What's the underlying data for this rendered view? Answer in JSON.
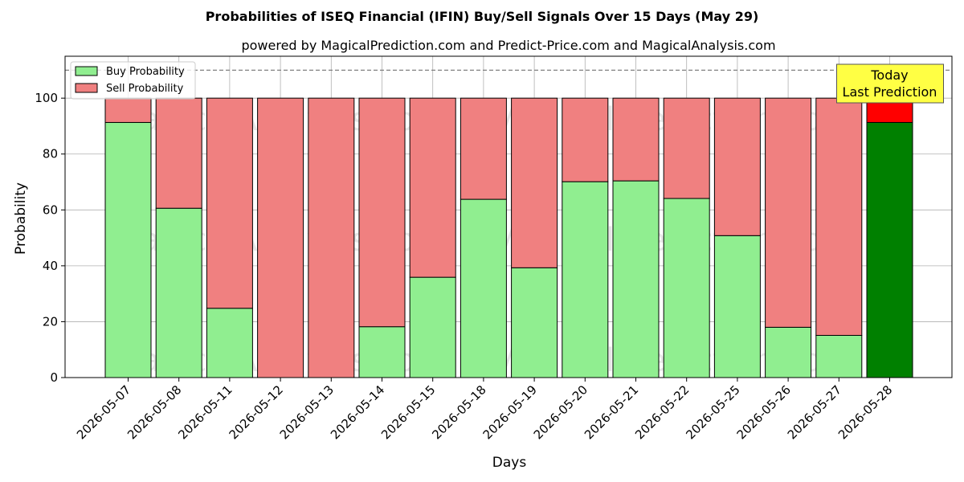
{
  "chart_data": {
    "type": "bar",
    "stacked": true,
    "title": "Probabilities of ISEQ Financial (IFIN) Buy/Sell Signals Over 15 Days (May 29)",
    "subtitle": "powered by MagicalPrediction.com and Predict-Price.com and MagicalAnalysis.com",
    "xlabel": "Days",
    "ylabel": "Probability",
    "ylim": [
      0,
      115
    ],
    "yticks": [
      0,
      20,
      40,
      60,
      80,
      100
    ],
    "reference_line": 110,
    "grid": true,
    "legend_position": "top-left",
    "categories": [
      "2026-05-07",
      "2026-05-08",
      "2026-05-11",
      "2026-05-12",
      "2026-05-13",
      "2026-05-14",
      "2026-05-15",
      "2026-05-18",
      "2026-05-19",
      "2026-05-20",
      "2026-05-21",
      "2026-05-22",
      "2026-05-25",
      "2026-05-26",
      "2026-05-27",
      "2026-05-28"
    ],
    "series": [
      {
        "name": "Buy Probability",
        "color": "#90ee90",
        "values": [
          91.3,
          60.6,
          24.8,
          0,
          0,
          18.2,
          35.9,
          63.8,
          39.3,
          70.1,
          70.4,
          64.1,
          50.8,
          18.0,
          15.1,
          91.3
        ]
      },
      {
        "name": "Sell Probability",
        "color": "#f08080",
        "values": [
          8.7,
          39.4,
          75.2,
          100,
          100,
          81.8,
          64.1,
          36.2,
          60.7,
          29.9,
          29.6,
          35.9,
          49.2,
          82.0,
          84.9,
          8.7
        ]
      }
    ],
    "highlight": {
      "index": 15,
      "buy_color": "#008000",
      "sell_color": "#ff0000",
      "label_line1": "Today",
      "label_line2": "Last Prediction",
      "label_bg": "#ffff44"
    },
    "watermarks": [
      "MagicalAnalysis.com",
      "MagicalPrediction.com"
    ]
  }
}
